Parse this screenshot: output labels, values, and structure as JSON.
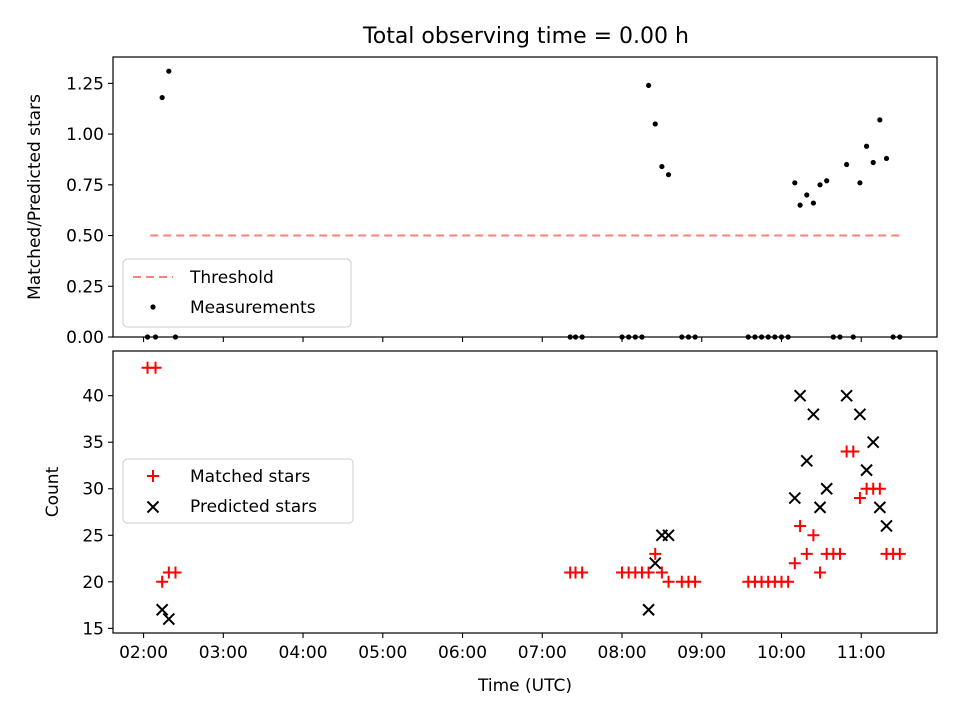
{
  "chart_data": [
    {
      "type": "scatter",
      "title": "Total observing time = 0.00 h",
      "xlabel": "",
      "ylabel": "Matched/Predicted stars",
      "xlim": [
        "01:37",
        "11:57"
      ],
      "ylim": [
        0.0,
        1.38
      ],
      "yticks": [
        "0.00",
        "0.25",
        "0.50",
        "0.75",
        "1.00",
        "1.25"
      ],
      "legend_position": "lower-left",
      "threshold": {
        "name": "Threshold",
        "color": "#ff7f7f",
        "style": "dashed",
        "y": 0.5,
        "x_range": [
          "02:05",
          "11:30"
        ]
      },
      "series": [
        {
          "name": "Measurements",
          "color": "#000000",
          "marker": "dot",
          "points": [
            [
              "02:03",
              0.0
            ],
            [
              "02:09",
              0.0
            ],
            [
              "02:14",
              1.18
            ],
            [
              "02:19",
              1.31
            ],
            [
              "02:24",
              0.0
            ],
            [
              "07:21",
              0.0
            ],
            [
              "07:25",
              0.0
            ],
            [
              "07:30",
              0.0
            ],
            [
              "08:00",
              0.0
            ],
            [
              "08:05",
              0.0
            ],
            [
              "08:10",
              0.0
            ],
            [
              "08:15",
              0.0
            ],
            [
              "08:20",
              1.24
            ],
            [
              "08:25",
              1.05
            ],
            [
              "08:30",
              0.84
            ],
            [
              "08:35",
              0.8
            ],
            [
              "08:45",
              0.0
            ],
            [
              "08:50",
              0.0
            ],
            [
              "08:55",
              0.0
            ],
            [
              "09:35",
              0.0
            ],
            [
              "09:40",
              0.0
            ],
            [
              "09:45",
              0.0
            ],
            [
              "09:50",
              0.0
            ],
            [
              "09:55",
              0.0
            ],
            [
              "10:00",
              0.0
            ],
            [
              "10:05",
              0.0
            ],
            [
              "10:10",
              0.76
            ],
            [
              "10:14",
              0.65
            ],
            [
              "10:19",
              0.7
            ],
            [
              "10:24",
              0.66
            ],
            [
              "10:29",
              0.75
            ],
            [
              "10:34",
              0.77
            ],
            [
              "10:39",
              0.0
            ],
            [
              "10:44",
              0.0
            ],
            [
              "10:49",
              0.85
            ],
            [
              "10:54",
              0.0
            ],
            [
              "10:59",
              0.76
            ],
            [
              "11:04",
              0.94
            ],
            [
              "11:09",
              0.86
            ],
            [
              "11:14",
              1.07
            ],
            [
              "11:19",
              0.88
            ],
            [
              "11:24",
              0.0
            ],
            [
              "11:29",
              0.0
            ]
          ]
        }
      ]
    },
    {
      "type": "scatter",
      "title": "",
      "xlabel": "Time (UTC)",
      "ylabel": "Count",
      "xlim": [
        "01:37",
        "11:57"
      ],
      "ylim": [
        14.5,
        44.8
      ],
      "yticks": [
        "15",
        "20",
        "25",
        "30",
        "35",
        "40"
      ],
      "xticks": [
        "02:00",
        "03:00",
        "04:00",
        "05:00",
        "06:00",
        "07:00",
        "08:00",
        "09:00",
        "10:00",
        "11:00"
      ],
      "legend_position": "center-left",
      "series": [
        {
          "name": "Matched stars",
          "color": "#ff0000",
          "marker": "plus",
          "points": [
            [
              "02:03",
              43
            ],
            [
              "02:09",
              43
            ],
            [
              "02:14",
              20
            ],
            [
              "02:19",
              21
            ],
            [
              "02:24",
              21
            ],
            [
              "07:21",
              21
            ],
            [
              "07:25",
              21
            ],
            [
              "07:30",
              21
            ],
            [
              "08:00",
              21
            ],
            [
              "08:05",
              21
            ],
            [
              "08:10",
              21
            ],
            [
              "08:15",
              21
            ],
            [
              "08:20",
              21
            ],
            [
              "08:25",
              23
            ],
            [
              "08:30",
              21
            ],
            [
              "08:35",
              20
            ],
            [
              "08:45",
              20
            ],
            [
              "08:50",
              20
            ],
            [
              "08:55",
              20
            ],
            [
              "09:35",
              20
            ],
            [
              "09:40",
              20
            ],
            [
              "09:45",
              20
            ],
            [
              "09:50",
              20
            ],
            [
              "09:55",
              20
            ],
            [
              "10:00",
              20
            ],
            [
              "10:05",
              20
            ],
            [
              "10:10",
              22
            ],
            [
              "10:14",
              26
            ],
            [
              "10:19",
              23
            ],
            [
              "10:24",
              25
            ],
            [
              "10:29",
              21
            ],
            [
              "10:34",
              23
            ],
            [
              "10:39",
              23
            ],
            [
              "10:44",
              23
            ],
            [
              "10:49",
              34
            ],
            [
              "10:54",
              34
            ],
            [
              "10:59",
              29
            ],
            [
              "11:04",
              30
            ],
            [
              "11:09",
              30
            ],
            [
              "11:14",
              30
            ],
            [
              "11:19",
              23
            ],
            [
              "11:24",
              23
            ],
            [
              "11:29",
              23
            ]
          ]
        },
        {
          "name": "Predicted stars",
          "color": "#000000",
          "marker": "cross",
          "points": [
            [
              "02:14",
              17
            ],
            [
              "02:19",
              16
            ],
            [
              "08:20",
              17
            ],
            [
              "08:25",
              22
            ],
            [
              "08:30",
              25
            ],
            [
              "08:35",
              25
            ],
            [
              "10:10",
              29
            ],
            [
              "10:14",
              40
            ],
            [
              "10:19",
              33
            ],
            [
              "10:24",
              38
            ],
            [
              "10:29",
              28
            ],
            [
              "10:34",
              30
            ],
            [
              "10:49",
              40
            ],
            [
              "10:59",
              38
            ],
            [
              "11:04",
              32
            ],
            [
              "11:09",
              35
            ],
            [
              "11:14",
              28
            ],
            [
              "11:19",
              26
            ]
          ]
        }
      ]
    }
  ]
}
